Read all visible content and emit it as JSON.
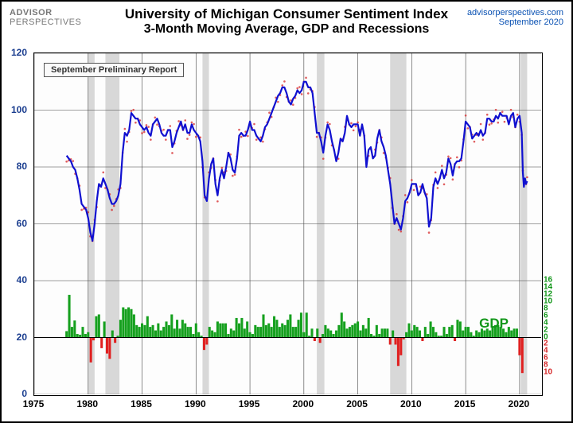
{
  "header": {
    "logo_brand": "ADVISOR",
    "logo_sub": "PERSPECTIVES",
    "title1": "University of Michigan Consumer Sentiment Index",
    "title2": "3-Month Moving Average, GDP and Recessions",
    "source": "advisorperspectives.com",
    "date": "September 2020",
    "source_color": "#0951b3",
    "date_color": "#0951b3"
  },
  "annotation": {
    "label": "September Preliminary Report"
  },
  "gdp_label": {
    "text": "GDP",
    "color": "#109618",
    "fontsize": 17
  },
  "chart": {
    "type": "line+bar+shading",
    "x_domain": [
      1975,
      2022
    ],
    "y_left_domain": [
      0,
      120
    ],
    "y_left_ticks": [
      0,
      20,
      40,
      60,
      80,
      100,
      120
    ],
    "y_left_color": "#1a3d8f",
    "x_ticks": [
      1975,
      1980,
      1985,
      1990,
      1995,
      2000,
      2005,
      2010,
      2015,
      2020
    ],
    "y_right_gdp_center": 20,
    "y_right_pos_ticks": [
      0,
      2,
      4,
      6,
      8,
      10,
      12,
      14,
      16
    ],
    "y_right_neg_ticks": [
      2,
      4,
      6,
      8,
      10
    ],
    "y_right_pos_color": "#109618",
    "y_right_neg_color": "#d62728",
    "grid_color": "#444444",
    "recession_fill": "#c8c8c8",
    "background": "#fdfdfd",
    "line_color": "#1010d0",
    "line_width": 2.2,
    "marker_color": "#d62728",
    "marker_size": 1.3,
    "gdp_pos_color": "#15a01e",
    "gdp_neg_color": "#e02020",
    "recessions": [
      [
        1980.0,
        1980.6
      ],
      [
        1981.6,
        1982.9
      ],
      [
        1990.6,
        1991.2
      ],
      [
        2001.2,
        2001.9
      ],
      [
        2008.0,
        2009.5
      ],
      [
        2020.1,
        2020.7
      ]
    ],
    "sentiment": [
      [
        1978.0,
        84
      ],
      [
        1978.2,
        83
      ],
      [
        1978.4,
        82
      ],
      [
        1978.6,
        80
      ],
      [
        1978.8,
        79
      ],
      [
        1979.0,
        76
      ],
      [
        1979.2,
        72
      ],
      [
        1979.4,
        67
      ],
      [
        1979.6,
        66
      ],
      [
        1979.8,
        65
      ],
      [
        1980.0,
        62
      ],
      [
        1980.2,
        57
      ],
      [
        1980.4,
        54
      ],
      [
        1980.6,
        60
      ],
      [
        1980.8,
        68
      ],
      [
        1981.0,
        74
      ],
      [
        1981.2,
        73
      ],
      [
        1981.4,
        76
      ],
      [
        1981.6,
        74
      ],
      [
        1981.8,
        72
      ],
      [
        1982.0,
        69
      ],
      [
        1982.2,
        67
      ],
      [
        1982.4,
        67
      ],
      [
        1982.6,
        68
      ],
      [
        1982.8,
        70
      ],
      [
        1983.0,
        74
      ],
      [
        1983.2,
        85
      ],
      [
        1983.4,
        92
      ],
      [
        1983.6,
        91
      ],
      [
        1983.8,
        93
      ],
      [
        1984.0,
        99
      ],
      [
        1984.2,
        98
      ],
      [
        1984.4,
        97
      ],
      [
        1984.6,
        97
      ],
      [
        1984.8,
        95
      ],
      [
        1985.0,
        94
      ],
      [
        1985.2,
        93
      ],
      [
        1985.4,
        94
      ],
      [
        1985.6,
        92
      ],
      [
        1985.8,
        91
      ],
      [
        1986.0,
        95
      ],
      [
        1986.2,
        96
      ],
      [
        1986.4,
        97
      ],
      [
        1986.6,
        95
      ],
      [
        1986.8,
        92
      ],
      [
        1987.0,
        91
      ],
      [
        1987.2,
        91
      ],
      [
        1987.4,
        93
      ],
      [
        1987.6,
        93
      ],
      [
        1987.8,
        87
      ],
      [
        1988.0,
        89
      ],
      [
        1988.2,
        92
      ],
      [
        1988.4,
        94
      ],
      [
        1988.6,
        96
      ],
      [
        1988.8,
        93
      ],
      [
        1989.0,
        95
      ],
      [
        1989.2,
        92
      ],
      [
        1989.4,
        92
      ],
      [
        1989.6,
        95
      ],
      [
        1989.8,
        93
      ],
      [
        1990.0,
        92
      ],
      [
        1990.2,
        91
      ],
      [
        1990.4,
        89
      ],
      [
        1990.6,
        82
      ],
      [
        1990.8,
        70
      ],
      [
        1991.0,
        68
      ],
      [
        1991.2,
        76
      ],
      [
        1991.4,
        81
      ],
      [
        1991.6,
        83
      ],
      [
        1991.8,
        74
      ],
      [
        1992.0,
        70
      ],
      [
        1992.2,
        76
      ],
      [
        1992.4,
        79
      ],
      [
        1992.6,
        76
      ],
      [
        1992.8,
        80
      ],
      [
        1993.0,
        85
      ],
      [
        1993.2,
        83
      ],
      [
        1993.4,
        79
      ],
      [
        1993.6,
        78
      ],
      [
        1993.8,
        83
      ],
      [
        1994.0,
        91
      ],
      [
        1994.2,
        92
      ],
      [
        1994.4,
        91
      ],
      [
        1994.6,
        91
      ],
      [
        1994.8,
        93
      ],
      [
        1995.0,
        96
      ],
      [
        1995.2,
        93
      ],
      [
        1995.4,
        93
      ],
      [
        1995.6,
        91
      ],
      [
        1995.8,
        90
      ],
      [
        1996.0,
        89
      ],
      [
        1996.2,
        91
      ],
      [
        1996.4,
        94
      ],
      [
        1996.6,
        95
      ],
      [
        1996.8,
        97
      ],
      [
        1997.0,
        99
      ],
      [
        1997.2,
        101
      ],
      [
        1997.4,
        103
      ],
      [
        1997.6,
        105
      ],
      [
        1997.8,
        106
      ],
      [
        1998.0,
        108
      ],
      [
        1998.2,
        108
      ],
      [
        1998.4,
        106
      ],
      [
        1998.6,
        103
      ],
      [
        1998.8,
        102
      ],
      [
        1999.0,
        104
      ],
      [
        1999.2,
        105
      ],
      [
        1999.4,
        107
      ],
      [
        1999.6,
        106
      ],
      [
        1999.8,
        107
      ],
      [
        2000.0,
        110
      ],
      [
        2000.2,
        110
      ],
      [
        2000.4,
        108
      ],
      [
        2000.6,
        108
      ],
      [
        2000.8,
        106
      ],
      [
        2001.0,
        99
      ],
      [
        2001.2,
        92
      ],
      [
        2001.4,
        92
      ],
      [
        2001.6,
        89
      ],
      [
        2001.8,
        85
      ],
      [
        2002.0,
        91
      ],
      [
        2002.2,
        95
      ],
      [
        2002.4,
        93
      ],
      [
        2002.6,
        89
      ],
      [
        2002.8,
        86
      ],
      [
        2003.0,
        82
      ],
      [
        2003.2,
        85
      ],
      [
        2003.4,
        90
      ],
      [
        2003.6,
        89
      ],
      [
        2003.8,
        92
      ],
      [
        2004.0,
        98
      ],
      [
        2004.2,
        95
      ],
      [
        2004.4,
        94
      ],
      [
        2004.6,
        95
      ],
      [
        2004.8,
        95
      ],
      [
        2005.0,
        95
      ],
      [
        2005.2,
        91
      ],
      [
        2005.4,
        95
      ],
      [
        2005.6,
        91
      ],
      [
        2005.8,
        80
      ],
      [
        2006.0,
        86
      ],
      [
        2006.2,
        87
      ],
      [
        2006.4,
        83
      ],
      [
        2006.6,
        84
      ],
      [
        2006.8,
        90
      ],
      [
        2007.0,
        93
      ],
      [
        2007.2,
        89
      ],
      [
        2007.4,
        87
      ],
      [
        2007.6,
        84
      ],
      [
        2007.8,
        79
      ],
      [
        2008.0,
        74
      ],
      [
        2008.2,
        67
      ],
      [
        2008.4,
        60
      ],
      [
        2008.6,
        62
      ],
      [
        2008.8,
        60
      ],
      [
        2009.0,
        58
      ],
      [
        2009.2,
        62
      ],
      [
        2009.4,
        68
      ],
      [
        2009.6,
        69
      ],
      [
        2009.8,
        71
      ],
      [
        2010.0,
        74
      ],
      [
        2010.2,
        74
      ],
      [
        2010.4,
        74
      ],
      [
        2010.6,
        70
      ],
      [
        2010.8,
        71
      ],
      [
        2011.0,
        74
      ],
      [
        2011.2,
        71
      ],
      [
        2011.4,
        69
      ],
      [
        2011.6,
        59
      ],
      [
        2011.8,
        62
      ],
      [
        2012.0,
        73
      ],
      [
        2012.2,
        76
      ],
      [
        2012.4,
        74
      ],
      [
        2012.6,
        76
      ],
      [
        2012.8,
        79
      ],
      [
        2013.0,
        76
      ],
      [
        2013.2,
        78
      ],
      [
        2013.4,
        83
      ],
      [
        2013.6,
        81
      ],
      [
        2013.8,
        77
      ],
      [
        2014.0,
        81
      ],
      [
        2014.2,
        82
      ],
      [
        2014.4,
        82
      ],
      [
        2014.6,
        83
      ],
      [
        2014.8,
        89
      ],
      [
        2015.0,
        96
      ],
      [
        2015.2,
        95
      ],
      [
        2015.4,
        94
      ],
      [
        2015.6,
        90
      ],
      [
        2015.8,
        91
      ],
      [
        2016.0,
        92
      ],
      [
        2016.2,
        91
      ],
      [
        2016.4,
        93
      ],
      [
        2016.6,
        91
      ],
      [
        2016.8,
        92
      ],
      [
        2017.0,
        97
      ],
      [
        2017.2,
        97
      ],
      [
        2017.4,
        96
      ],
      [
        2017.6,
        96
      ],
      [
        2017.8,
        98
      ],
      [
        2018.0,
        97
      ],
      [
        2018.2,
        99
      ],
      [
        2018.4,
        98
      ],
      [
        2018.6,
        98
      ],
      [
        2018.8,
        98
      ],
      [
        2019.0,
        95
      ],
      [
        2019.2,
        98
      ],
      [
        2019.4,
        99
      ],
      [
        2019.6,
        94
      ],
      [
        2019.8,
        97
      ],
      [
        2020.0,
        98
      ],
      [
        2020.2,
        92
      ],
      [
        2020.3,
        78
      ],
      [
        2020.4,
        73
      ],
      [
        2020.5,
        76
      ],
      [
        2020.6,
        74
      ],
      [
        2020.7,
        75
      ]
    ],
    "gdp": [
      [
        1978.0,
        1.8
      ],
      [
        1978.25,
        12
      ],
      [
        1978.5,
        3
      ],
      [
        1978.75,
        4.8
      ],
      [
        1979.0,
        1
      ],
      [
        1979.25,
        0.8
      ],
      [
        1979.5,
        3
      ],
      [
        1979.75,
        1
      ],
      [
        1980.0,
        1.5
      ],
      [
        1980.25,
        -7
      ],
      [
        1980.5,
        -0.8
      ],
      [
        1980.75,
        6
      ],
      [
        1981.0,
        6.5
      ],
      [
        1981.25,
        -3
      ],
      [
        1981.5,
        4.5
      ],
      [
        1981.75,
        -4.5
      ],
      [
        1982.0,
        -6
      ],
      [
        1982.25,
        2
      ],
      [
        1982.5,
        -1.5
      ],
      [
        1982.75,
        0.5
      ],
      [
        1983.0,
        5
      ],
      [
        1983.25,
        8.5
      ],
      [
        1983.5,
        8
      ],
      [
        1983.75,
        8.5
      ],
      [
        1984.0,
        8
      ],
      [
        1984.25,
        6.5
      ],
      [
        1984.5,
        3.5
      ],
      [
        1984.75,
        3
      ],
      [
        1985.0,
        4
      ],
      [
        1985.25,
        3.5
      ],
      [
        1985.5,
        6
      ],
      [
        1985.75,
        3
      ],
      [
        1986.0,
        3.5
      ],
      [
        1986.25,
        2
      ],
      [
        1986.5,
        4
      ],
      [
        1986.75,
        2
      ],
      [
        1987.0,
        3
      ],
      [
        1987.25,
        4.5
      ],
      [
        1987.5,
        3.5
      ],
      [
        1987.75,
        6.5
      ],
      [
        1988.0,
        2.5
      ],
      [
        1988.25,
        5
      ],
      [
        1988.5,
        2.5
      ],
      [
        1988.75,
        5
      ],
      [
        1989.0,
        4
      ],
      [
        1989.25,
        3
      ],
      [
        1989.5,
        3
      ],
      [
        1989.75,
        1
      ],
      [
        1990.0,
        4
      ],
      [
        1990.25,
        1.5
      ],
      [
        1990.5,
        0.5
      ],
      [
        1990.75,
        -3.5
      ],
      [
        1991.0,
        -2
      ],
      [
        1991.25,
        3
      ],
      [
        1991.5,
        2
      ],
      [
        1991.75,
        1.5
      ],
      [
        1992.0,
        4.5
      ],
      [
        1992.25,
        4
      ],
      [
        1992.5,
        4
      ],
      [
        1992.75,
        4
      ],
      [
        1993.0,
        1
      ],
      [
        1993.25,
        2.5
      ],
      [
        1993.5,
        2
      ],
      [
        1993.75,
        5.5
      ],
      [
        1994.0,
        4
      ],
      [
        1994.25,
        5.5
      ],
      [
        1994.5,
        2.5
      ],
      [
        1994.75,
        4.5
      ],
      [
        1995.0,
        1.5
      ],
      [
        1995.25,
        1
      ],
      [
        1995.5,
        3.5
      ],
      [
        1995.75,
        3
      ],
      [
        1996.0,
        3
      ],
      [
        1996.25,
        6.5
      ],
      [
        1996.5,
        3.5
      ],
      [
        1996.75,
        4
      ],
      [
        1997.0,
        3
      ],
      [
        1997.25,
        6
      ],
      [
        1997.5,
        5
      ],
      [
        1997.75,
        3
      ],
      [
        1998.0,
        4
      ],
      [
        1998.25,
        3.5
      ],
      [
        1998.5,
        5
      ],
      [
        1998.75,
        6.5
      ],
      [
        1999.0,
        3
      ],
      [
        1999.25,
        3
      ],
      [
        1999.5,
        5
      ],
      [
        1999.75,
        7
      ],
      [
        2000.0,
        1.5
      ],
      [
        2000.25,
        7
      ],
      [
        2000.5,
        0.5
      ],
      [
        2000.75,
        2.5
      ],
      [
        2001.0,
        -1
      ],
      [
        2001.25,
        2.5
      ],
      [
        2001.5,
        -1.5
      ],
      [
        2001.75,
        1
      ],
      [
        2002.0,
        3.5
      ],
      [
        2002.25,
        2.5
      ],
      [
        2002.5,
        2
      ],
      [
        2002.75,
        1
      ],
      [
        2003.0,
        2
      ],
      [
        2003.25,
        3.5
      ],
      [
        2003.5,
        7
      ],
      [
        2003.75,
        4.5
      ],
      [
        2004.0,
        2.5
      ],
      [
        2004.25,
        3
      ],
      [
        2004.5,
        3.5
      ],
      [
        2004.75,
        4
      ],
      [
        2005.0,
        4.5
      ],
      [
        2005.25,
        2
      ],
      [
        2005.5,
        3.5
      ],
      [
        2005.75,
        2.5
      ],
      [
        2006.0,
        5.5
      ],
      [
        2006.25,
        1
      ],
      [
        2006.5,
        0.5
      ],
      [
        2006.75,
        3.5
      ],
      [
        2007.0,
        1
      ],
      [
        2007.25,
        2.5
      ],
      [
        2007.5,
        2.5
      ],
      [
        2007.75,
        2.5
      ],
      [
        2008.0,
        -2
      ],
      [
        2008.25,
        2
      ],
      [
        2008.5,
        -2
      ],
      [
        2008.75,
        -8
      ],
      [
        2009.0,
        -5
      ],
      [
        2009.25,
        -0.5
      ],
      [
        2009.5,
        1.5
      ],
      [
        2009.75,
        4
      ],
      [
        2010.0,
        2
      ],
      [
        2010.25,
        3.5
      ],
      [
        2010.5,
        3
      ],
      [
        2010.75,
        2
      ],
      [
        2011.0,
        -1
      ],
      [
        2011.25,
        3
      ],
      [
        2011.5,
        1
      ],
      [
        2011.75,
        4.5
      ],
      [
        2012.0,
        3
      ],
      [
        2012.25,
        1.5
      ],
      [
        2012.5,
        0.5
      ],
      [
        2012.75,
        0.5
      ],
      [
        2013.0,
        3
      ],
      [
        2013.25,
        1
      ],
      [
        2013.5,
        3
      ],
      [
        2013.75,
        3.5
      ],
      [
        2014.0,
        -1
      ],
      [
        2014.25,
        5
      ],
      [
        2014.5,
        4.5
      ],
      [
        2014.75,
        2
      ],
      [
        2015.0,
        3
      ],
      [
        2015.25,
        3
      ],
      [
        2015.5,
        1.5
      ],
      [
        2015.75,
        0.5
      ],
      [
        2016.0,
        2
      ],
      [
        2016.25,
        1.5
      ],
      [
        2016.5,
        2.5
      ],
      [
        2016.75,
        2
      ],
      [
        2017.0,
        2.5
      ],
      [
        2017.25,
        2
      ],
      [
        2017.5,
        3
      ],
      [
        2017.75,
        3.5
      ],
      [
        2018.0,
        3.5
      ],
      [
        2018.25,
        3
      ],
      [
        2018.5,
        2.5
      ],
      [
        2018.75,
        1.5
      ],
      [
        2019.0,
        3
      ],
      [
        2019.25,
        2
      ],
      [
        2019.5,
        2.5
      ],
      [
        2019.75,
        2.5
      ],
      [
        2020.0,
        -5
      ],
      [
        2020.25,
        -10
      ]
    ]
  }
}
